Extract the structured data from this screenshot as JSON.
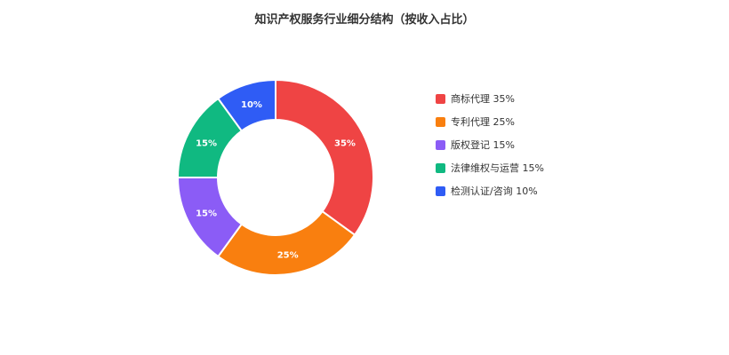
{
  "chart_data": {
    "type": "pie",
    "variant": "donut",
    "title": "知识产权服务行业细分结构（按收入占比）",
    "slices": [
      {
        "label": "商标代理",
        "value": 35,
        "color": "#ef4444"
      },
      {
        "label": "专利代理",
        "value": 25,
        "color": "#f97f0f"
      },
      {
        "label": "版权登记",
        "value": 15,
        "color": "#8b5cf6"
      },
      {
        "label": "法律维权与运营",
        "value": 15,
        "color": "#10b981"
      },
      {
        "label": "检测认证/咨询",
        "value": 10,
        "color": "#2f5cf5"
      }
    ],
    "legend_position": "right"
  }
}
